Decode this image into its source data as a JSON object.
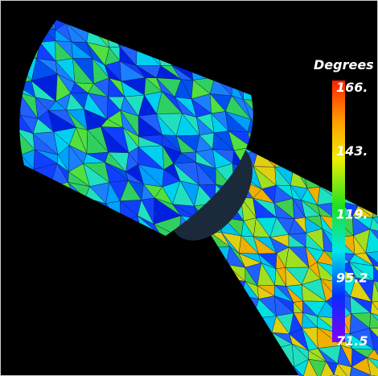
{
  "colorbar": {
    "title": "Degrees",
    "labels": [
      "166.",
      "143.",
      "119.",
      "95.2",
      "71.5"
    ]
  }
}
